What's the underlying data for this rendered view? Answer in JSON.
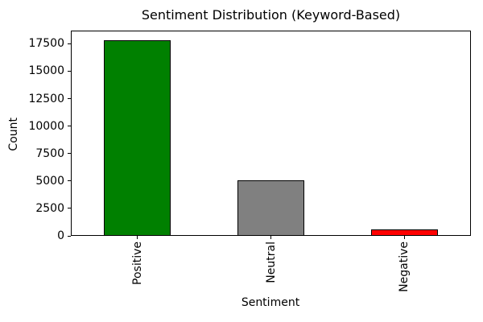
{
  "chart_data": {
    "type": "bar",
    "title": "Sentiment Distribution (Keyword-Based)",
    "xlabel": "Sentiment",
    "ylabel": "Count",
    "categories": [
      "Positive",
      "Neutral",
      "Negative"
    ],
    "values": [
      17800,
      5050,
      600
    ],
    "bar_colors": [
      "#008000",
      "#808080",
      "#ff0000"
    ],
    "bar_edge_color": "#000000",
    "background_color": "#ffffff",
    "ylim": [
      0,
      18700
    ],
    "yticks": [
      0,
      2500,
      5000,
      7500,
      10000,
      12500,
      15000,
      17500
    ],
    "xtick_rotation": 90,
    "bar_width_fraction": 0.5,
    "grid": false,
    "legend": null,
    "frame": "full-box"
  }
}
